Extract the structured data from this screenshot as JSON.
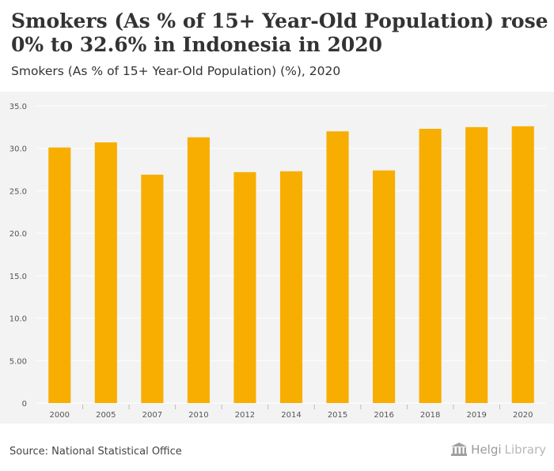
{
  "header": {
    "title": "Smokers (As % of 15+ Year-Old Population) rose 0% to 32.6% in Indonesia in 2020",
    "subtitle": "Smokers (As % of 15+ Year-Old Population) (%), 2020"
  },
  "footer": {
    "source": "Source: National Statistical Office",
    "logo_brand": "Helgi",
    "logo_suffix": "Library"
  },
  "colors": {
    "bar": "#F7AE00",
    "plot_background": "#F3F3F3",
    "grid": "#FFFFFF",
    "text": "#333333"
  },
  "chart_data": {
    "type": "bar",
    "categories": [
      "2000",
      "2005",
      "2007",
      "2010",
      "2012",
      "2014",
      "2015",
      "2016",
      "2018",
      "2019",
      "2020"
    ],
    "values": [
      30.1,
      30.7,
      26.9,
      31.3,
      27.2,
      27.3,
      32.0,
      27.4,
      32.3,
      32.5,
      32.6
    ],
    "ylim": [
      0,
      35
    ],
    "yticks": [
      "0",
      "5.00",
      "10.0",
      "15.0",
      "20.0",
      "25.0",
      "30.0",
      "35.0"
    ],
    "ytick_values": [
      0,
      5,
      10,
      15,
      20,
      25,
      30,
      35
    ],
    "grid": true,
    "legend": "none"
  }
}
